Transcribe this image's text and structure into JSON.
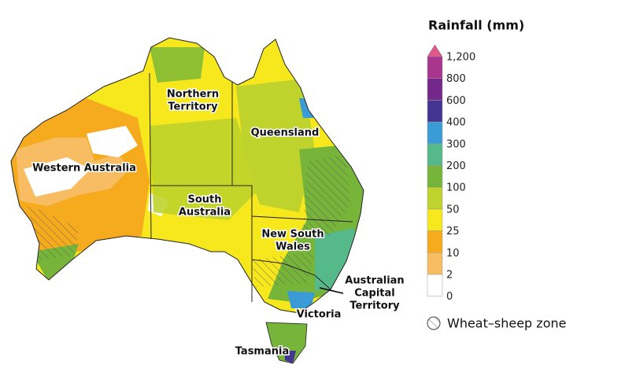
{
  "legend": {
    "title": "Rainfall (mm)",
    "ticks": [
      "1,200",
      "800",
      "600",
      "400",
      "300",
      "200",
      "100",
      "50",
      "25",
      "10",
      "2",
      "0"
    ],
    "top_color": "#e2578b",
    "bin_colors": [
      "#a8368f",
      "#74288a",
      "#453592",
      "#3b9bd7",
      "#56b98a",
      "#76b43a",
      "#bfd32c",
      "#f6e81c",
      "#f6aa1e",
      "#f8bd62",
      "#ffffff"
    ],
    "zone_label": "Wheat–sheep zone"
  },
  "regions": {
    "western_australia": [
      "Western Australia"
    ],
    "northern_territory": [
      "Northern",
      "Territory"
    ],
    "queensland": [
      "Queensland"
    ],
    "south_australia": [
      "South",
      "Australia"
    ],
    "new_south_wales": [
      "New South",
      "Wales"
    ],
    "act": [
      "Australian",
      "Capital",
      "Territory"
    ],
    "victoria": [
      "Victoria"
    ],
    "tasmania": [
      "Tasmania"
    ]
  }
}
